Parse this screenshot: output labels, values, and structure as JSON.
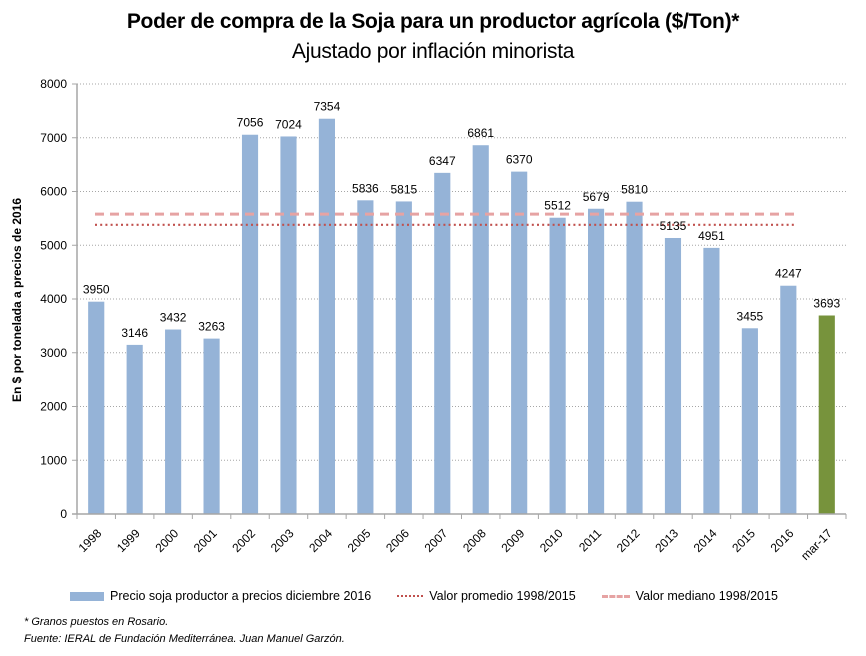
{
  "chart_data": {
    "type": "bar",
    "title": "Poder de compra de la Soja para un productor agrícola ($/Ton)*",
    "subtitle": "Ajustado por inflación minorista",
    "xlabel": "",
    "ylabel": "En $ por tonelada a precios de 2016",
    "ylim": [
      0,
      8000
    ],
    "yticks": [
      0,
      1000,
      2000,
      3000,
      4000,
      5000,
      6000,
      7000,
      8000
    ],
    "grid": true,
    "categories": [
      "1998",
      "1999",
      "2000",
      "2001",
      "2002",
      "2003",
      "2004",
      "2005",
      "2006",
      "2007",
      "2008",
      "2009",
      "2010",
      "2011",
      "2012",
      "2013",
      "2014",
      "2015",
      "2016",
      "mar-17"
    ],
    "series": [
      {
        "name": "Precio soja productor a precios diciembre  2016",
        "type": "bar",
        "values": [
          3950,
          3146,
          3432,
          3263,
          7056,
          7024,
          7354,
          5836,
          5815,
          6347,
          6861,
          6370,
          5512,
          5679,
          5810,
          5135,
          4951,
          3455,
          4247,
          3693
        ],
        "color": "#95b3d7",
        "highlight_index": 19,
        "highlight_color": "#77933c"
      },
      {
        "name": "Valor promedio 1998/2015",
        "type": "line",
        "style": "dotted",
        "value": 5380,
        "color": "#c0504d"
      },
      {
        "name": "Valor mediano 1998/2015",
        "type": "line",
        "style": "dashed",
        "value": 5580,
        "color": "#e6a3a3"
      }
    ],
    "legend_position": "bottom"
  },
  "notes": {
    "footnote": "* Granos puestos en Rosario.",
    "source": "Fuente: IERAL de Fundación Mediterránea.  Juan Manuel Garzón."
  }
}
